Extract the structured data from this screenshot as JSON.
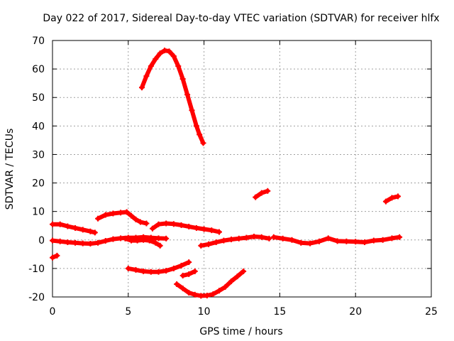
{
  "chart_data": {
    "type": "scatter",
    "title": "Day 022 of 2017, Sidereal Day-to-day VTEC variation (SDTVAR) for receiver hlfx",
    "xlabel": "GPS time / hours",
    "ylabel": "SDTVAR / TECUs",
    "xlim": [
      0,
      25
    ],
    "ylim": [
      -20,
      70
    ],
    "xticks": [
      0,
      5,
      10,
      15,
      20,
      25
    ],
    "yticks": [
      -20,
      -10,
      0,
      10,
      20,
      30,
      40,
      50,
      60,
      70
    ],
    "grid": true,
    "legend": "none",
    "marker_color": "#ff0000",
    "series": [
      {
        "x": [
          5.9,
          6.2,
          6.5,
          6.8,
          7.1,
          7.4,
          7.7,
          8.0,
          8.3,
          8.6,
          8.9,
          9.2,
          9.5,
          9.7,
          9.95
        ],
        "y": [
          53.5,
          57.5,
          61.0,
          63.5,
          65.5,
          66.5,
          66.2,
          64.5,
          61.0,
          56.5,
          51.0,
          45.5,
          40.0,
          37.0,
          34.0
        ]
      },
      {
        "x": [
          0.0,
          0.5,
          1.0,
          1.5,
          2.0,
          2.5,
          2.8
        ],
        "y": [
          5.5,
          5.5,
          4.8,
          4.2,
          3.6,
          3.0,
          2.6
        ]
      },
      {
        "x": [
          3.0,
          3.5,
          4.0,
          4.5,
          4.9,
          5.2,
          5.5,
          5.8,
          6.2
        ],
        "y": [
          7.5,
          8.8,
          9.3,
          9.6,
          9.8,
          8.5,
          7.2,
          6.3,
          5.8
        ]
      },
      {
        "x": [
          6.6,
          7.0,
          7.5,
          8.0,
          8.5,
          9.0,
          9.5,
          10.0,
          10.5,
          11.0
        ],
        "y": [
          4.0,
          5.5,
          5.8,
          5.6,
          5.2,
          4.7,
          4.2,
          3.8,
          3.4,
          2.8
        ]
      },
      {
        "x": [
          0.0,
          0.5,
          1.0,
          1.5,
          2.0,
          2.5,
          3.0,
          3.5,
          4.0,
          4.5,
          5.0,
          5.5,
          6.0,
          6.5,
          7.0,
          7.5
        ],
        "y": [
          -0.2,
          -0.5,
          -0.8,
          -1.0,
          -1.2,
          -1.3,
          -1.0,
          -0.3,
          0.3,
          0.6,
          0.8,
          0.8,
          1.0,
          0.8,
          0.6,
          0.5
        ]
      },
      {
        "x": [
          4.8,
          5.2,
          5.6,
          6.0,
          6.4,
          6.8,
          7.1
        ],
        "y": [
          0.5,
          -0.2,
          -0.2,
          0.0,
          -0.2,
          -1.0,
          -2.0
        ]
      },
      {
        "x": [
          9.8,
          10.3,
          10.8,
          11.3,
          11.8,
          12.3,
          12.8,
          13.3,
          13.8,
          14.3
        ],
        "y": [
          -2.0,
          -1.5,
          -0.8,
          -0.2,
          0.2,
          0.5,
          0.8,
          1.2,
          1.0,
          0.5
        ]
      },
      {
        "x": [
          14.6,
          15.2,
          15.8,
          16.4,
          17.0,
          17.6,
          18.2,
          18.8,
          19.4,
          20.0,
          20.6,
          21.2,
          21.8,
          22.4,
          22.9
        ],
        "y": [
          1.0,
          0.5,
          0.0,
          -1.0,
          -1.2,
          -0.5,
          0.6,
          -0.4,
          -0.5,
          -0.6,
          -0.8,
          -0.2,
          0.0,
          0.6,
          1.0
        ]
      },
      {
        "x": [
          0.0,
          0.3
        ],
        "y": [
          -6.2,
          -5.5
        ]
      },
      {
        "x": [
          5.0,
          5.5,
          6.0,
          6.5,
          7.0,
          7.5,
          8.0,
          8.5,
          9.0
        ],
        "y": [
          -10.0,
          -10.5,
          -11.0,
          -11.2,
          -11.2,
          -10.8,
          -10.0,
          -9.0,
          -7.8
        ]
      },
      {
        "x": [
          8.6,
          9.0,
          9.4
        ],
        "y": [
          -12.5,
          -12.0,
          -11.0
        ]
      },
      {
        "x": [
          8.2,
          8.6,
          9.0,
          9.4,
          9.8,
          10.2,
          10.6,
          11.0,
          11.4,
          11.8,
          12.2,
          12.6
        ],
        "y": [
          -15.5,
          -17.0,
          -18.5,
          -19.2,
          -19.6,
          -19.5,
          -19.0,
          -17.8,
          -16.5,
          -14.5,
          -12.8,
          -11.0
        ]
      },
      {
        "x": [
          13.4,
          13.8,
          14.2
        ],
        "y": [
          15.0,
          16.5,
          17.2
        ]
      },
      {
        "x": [
          22.0,
          22.4,
          22.8
        ],
        "y": [
          13.5,
          14.8,
          15.3
        ]
      }
    ]
  }
}
